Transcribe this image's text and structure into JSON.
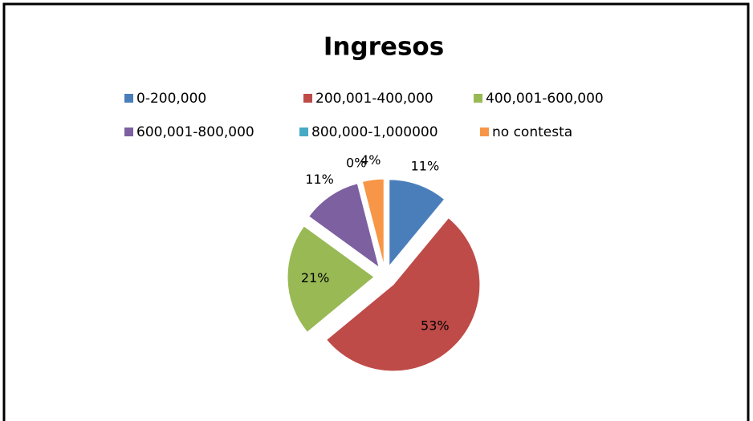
{
  "chart_data": {
    "type": "pie",
    "title": "Ingresos",
    "categories": [
      "0-200,000",
      "200,001-400,000",
      "400,001-600,000",
      "600,001-800,000",
      "800,000-1,000000",
      "no contesta"
    ],
    "values": [
      11,
      53,
      21,
      11,
      0,
      4
    ],
    "value_labels": [
      "11%",
      "53%",
      "21%",
      "11%",
      "0%",
      "4%"
    ],
    "colors": [
      "#4a7ebb",
      "#be4b48",
      "#98b954",
      "#7d60a0",
      "#46aac5",
      "#f79646"
    ],
    "legend": "top",
    "exploded": true
  }
}
